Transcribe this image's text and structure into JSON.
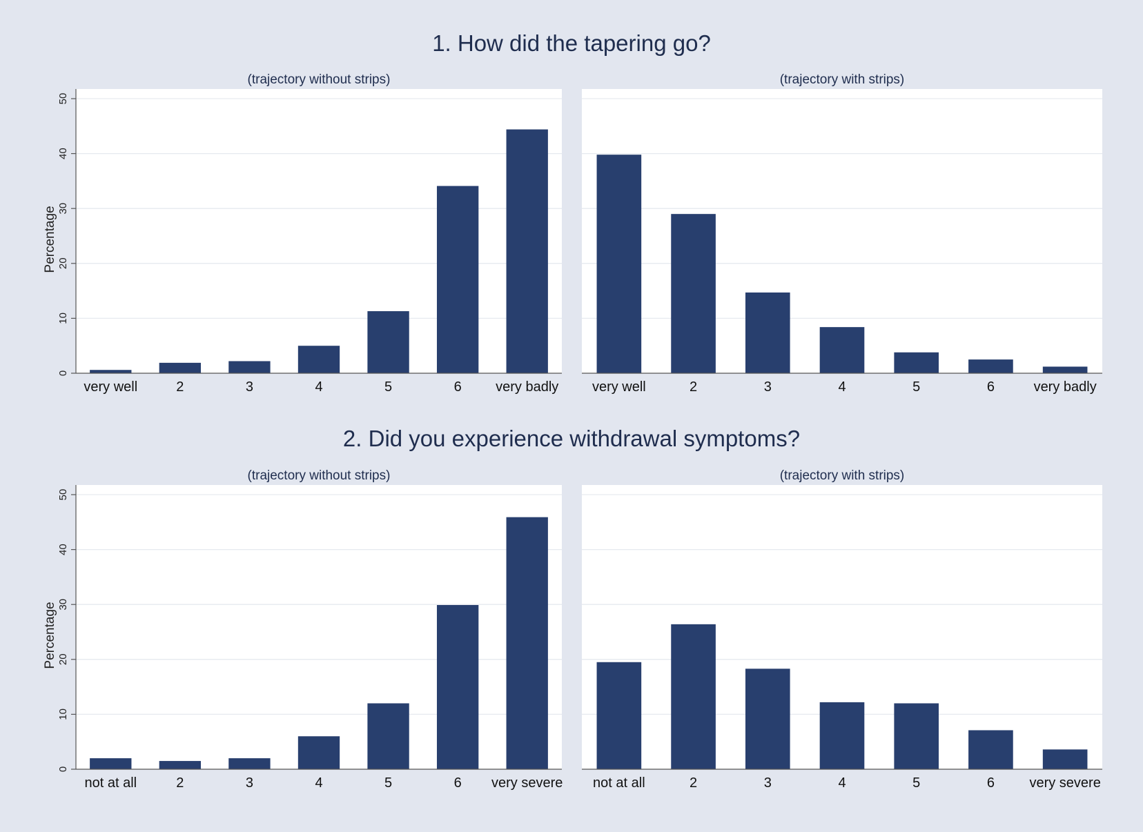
{
  "colors": {
    "background": "#e2e6ef",
    "plot_background": "#ffffff",
    "bar": "#283f6e",
    "text": "#1f2d4e",
    "grid": "#e6e9ef",
    "axis": "#555555"
  },
  "groups": [
    {
      "title": "1. How did the tapering go?"
    },
    {
      "title": "2. Did you experience withdrawal symptoms?"
    }
  ],
  "chart_data": [
    {
      "type": "bar",
      "group_title": "1. How did the tapering go?",
      "subtitle": "(trajectory without strips)",
      "ylabel": "Percentage",
      "ylim": [
        0,
        50
      ],
      "yticks": [
        "0",
        "10",
        "20",
        "30",
        "40",
        "50"
      ],
      "grid": true,
      "categories": [
        "very well",
        "2",
        "3",
        "4",
        "5",
        "6",
        "very badly"
      ],
      "values": [
        0.6,
        1.9,
        2.2,
        5.0,
        11.3,
        34.1,
        44.4
      ]
    },
    {
      "type": "bar",
      "group_title": "1. How did the tapering go?",
      "subtitle": "(trajectory with strips)",
      "ylabel": "",
      "ylim": [
        0,
        50
      ],
      "yticks": [],
      "grid": true,
      "categories": [
        "very well",
        "2",
        "3",
        "4",
        "5",
        "6",
        "very badly"
      ],
      "values": [
        39.8,
        29.0,
        14.7,
        8.4,
        3.8,
        2.5,
        1.2
      ]
    },
    {
      "type": "bar",
      "group_title": "2. Did you experience withdrawal symptoms?",
      "subtitle": "(trajectory without strips)",
      "ylabel": "Percentage",
      "ylim": [
        0,
        50
      ],
      "yticks": [
        "0",
        "10",
        "20",
        "30",
        "40",
        "50"
      ],
      "grid": true,
      "categories": [
        "not at all",
        "2",
        "3",
        "4",
        "5",
        "6",
        "very severe"
      ],
      "values": [
        2.0,
        1.5,
        2.0,
        6.0,
        12.0,
        29.9,
        45.9
      ]
    },
    {
      "type": "bar",
      "group_title": "2. Did you experience withdrawal symptoms?",
      "subtitle": "(trajectory with strips)",
      "ylabel": "",
      "ylim": [
        0,
        50
      ],
      "yticks": [],
      "grid": true,
      "categories": [
        "not at all",
        "2",
        "3",
        "4",
        "5",
        "6",
        "very severe"
      ],
      "values": [
        19.5,
        26.4,
        18.3,
        12.2,
        12.0,
        7.1,
        3.6
      ]
    }
  ]
}
